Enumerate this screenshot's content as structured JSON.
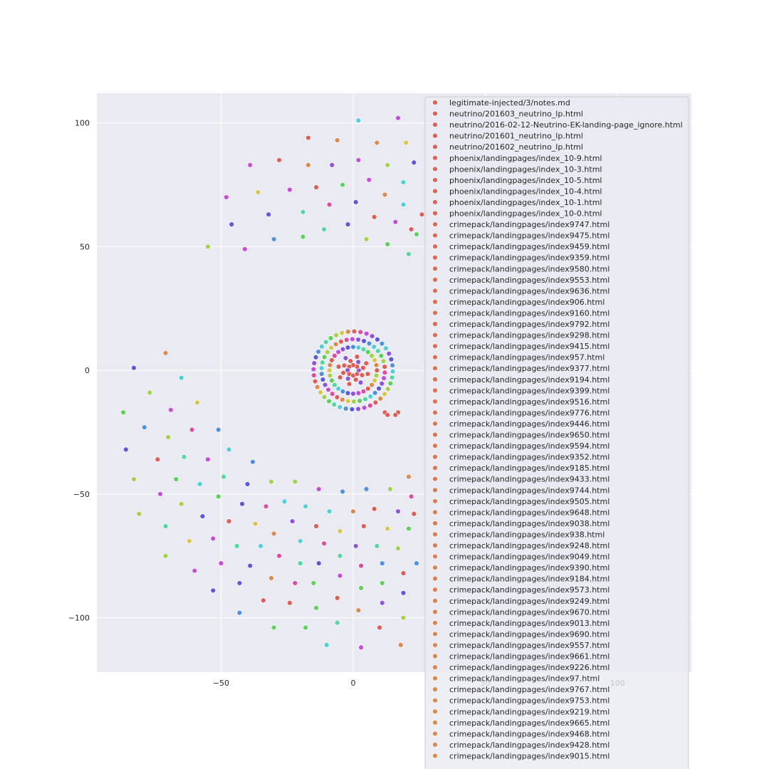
{
  "chart_data": {
    "type": "scatter",
    "title": "",
    "xlabel": "",
    "ylabel": "",
    "xlim": [
      -97,
      128
    ],
    "ylim": [
      -122,
      112
    ],
    "xticks": [
      -50,
      0,
      50,
      100
    ],
    "yticks": [
      -100,
      -50,
      0,
      50,
      100
    ],
    "xtick_labels": [
      "−50",
      "0",
      "50",
      "100"
    ],
    "ytick_labels": [
      "−100",
      "−50",
      "0",
      "50",
      "100"
    ],
    "grid": true,
    "legend_position": "top-right",
    "colors": {
      "background": "#eaeaf2",
      "grid": "#ffffff",
      "marker_edge": "#ffffff",
      "palette": [
        "#db5f57",
        "#d98b4f",
        "#d6c64e",
        "#a4d14e",
        "#5dd15c",
        "#53d6a0",
        "#4fcfd6",
        "#5190dc",
        "#5a5ad8",
        "#8c55d8",
        "#c44fd6",
        "#d94f9e"
      ]
    },
    "series": [
      {
        "name": "legitimate-injected/3/notes.md",
        "color": "#db5f57"
      },
      {
        "name": "neutrino/201603_neutrino_lp.html",
        "color": "#db5f57"
      },
      {
        "name": "neutrino/2016-02-12-Neutrino-EK-landing-page_ignore.html",
        "color": "#db5f57"
      },
      {
        "name": "neutrino/201601_neutrino_lp.html",
        "color": "#db5f57"
      },
      {
        "name": "neutrino/201602_neutrino_lp.html",
        "color": "#db5f57"
      },
      {
        "name": "phoenix/landingpages/index_10-9.html",
        "color": "#db6457"
      },
      {
        "name": "phoenix/landingpages/index_10-3.html",
        "color": "#db6457"
      },
      {
        "name": "phoenix/landingpages/index_10-5.html",
        "color": "#db6457"
      },
      {
        "name": "phoenix/landingpages/index_10-4.html",
        "color": "#db6457"
      },
      {
        "name": "phoenix/landingpages/index_10-1.html",
        "color": "#db6457"
      },
      {
        "name": "phoenix/landingpages/index_10-0.html",
        "color": "#db6457"
      },
      {
        "name": "crimepack/landingpages/index9747.html",
        "color": "#da6956"
      },
      {
        "name": "crimepack/landingpages/index9475.html",
        "color": "#da6956"
      },
      {
        "name": "crimepack/landingpages/index9459.html",
        "color": "#da6956"
      },
      {
        "name": "crimepack/landingpages/index9359.html",
        "color": "#da6956"
      },
      {
        "name": "crimepack/landingpages/index9580.html",
        "color": "#da6956"
      },
      {
        "name": "crimepack/landingpages/index9553.html",
        "color": "#da6956"
      },
      {
        "name": "crimepack/landingpages/index9636.html",
        "color": "#da6e55"
      },
      {
        "name": "crimepack/landingpages/index906.html",
        "color": "#da6e55"
      },
      {
        "name": "crimepack/landingpages/index9160.html",
        "color": "#da6e55"
      },
      {
        "name": "crimepack/landingpages/index9792.html",
        "color": "#da6e55"
      },
      {
        "name": "crimepack/landingpages/index9298.html",
        "color": "#da6e55"
      },
      {
        "name": "crimepack/landingpages/index9415.html",
        "color": "#da6e55"
      },
      {
        "name": "crimepack/landingpages/index957.html",
        "color": "#da7354"
      },
      {
        "name": "crimepack/landingpages/index9377.html",
        "color": "#da7354"
      },
      {
        "name": "crimepack/landingpages/index9194.html",
        "color": "#da7354"
      },
      {
        "name": "crimepack/landingpages/index9399.html",
        "color": "#da7354"
      },
      {
        "name": "crimepack/landingpages/index9516.html",
        "color": "#da7354"
      },
      {
        "name": "crimepack/landingpages/index9776.html",
        "color": "#da7354"
      },
      {
        "name": "crimepack/landingpages/index9446.html",
        "color": "#d97853"
      },
      {
        "name": "crimepack/landingpages/index9650.html",
        "color": "#d97853"
      },
      {
        "name": "crimepack/landingpages/index9594.html",
        "color": "#d97853"
      },
      {
        "name": "crimepack/landingpages/index9352.html",
        "color": "#d97853"
      },
      {
        "name": "crimepack/landingpages/index9185.html",
        "color": "#d97853"
      },
      {
        "name": "crimepack/landingpages/index9433.html",
        "color": "#d97853"
      },
      {
        "name": "crimepack/landingpages/index9744.html",
        "color": "#d97c52"
      },
      {
        "name": "crimepack/landingpages/index9505.html",
        "color": "#d97c52"
      },
      {
        "name": "crimepack/landingpages/index9648.html",
        "color": "#d97c52"
      },
      {
        "name": "crimepack/landingpages/index9038.html",
        "color": "#d97c52"
      },
      {
        "name": "crimepack/landingpages/index938.html",
        "color": "#d97c52"
      },
      {
        "name": "crimepack/landingpages/index9248.html",
        "color": "#d97c52"
      },
      {
        "name": "crimepack/landingpages/index9049.html",
        "color": "#d98151"
      },
      {
        "name": "crimepack/landingpages/index9390.html",
        "color": "#d98151"
      },
      {
        "name": "crimepack/landingpages/index9184.html",
        "color": "#d98151"
      },
      {
        "name": "crimepack/landingpages/index9573.html",
        "color": "#d98151"
      },
      {
        "name": "crimepack/landingpages/index9249.html",
        "color": "#d98151"
      },
      {
        "name": "crimepack/landingpages/index9670.html",
        "color": "#d98151"
      },
      {
        "name": "crimepack/landingpages/index9013.html",
        "color": "#d98650"
      },
      {
        "name": "crimepack/landingpages/index9690.html",
        "color": "#d98650"
      },
      {
        "name": "crimepack/landingpages/index9557.html",
        "color": "#d98650"
      },
      {
        "name": "crimepack/landingpages/index9661.html",
        "color": "#d98650"
      },
      {
        "name": "crimepack/landingpages/index9226.html",
        "color": "#d98650"
      },
      {
        "name": "crimepack/landingpages/index97.html",
        "color": "#d98650"
      },
      {
        "name": "crimepack/landingpages/index9767.html",
        "color": "#d98b4f"
      },
      {
        "name": "crimepack/landingpages/index9753.html",
        "color": "#d98b4f"
      },
      {
        "name": "crimepack/landingpages/index9219.html",
        "color": "#d98b4f"
      },
      {
        "name": "crimepack/landingpages/index9665.html",
        "color": "#d98b4f"
      },
      {
        "name": "crimepack/landingpages/index9468.html",
        "color": "#d98b4f"
      },
      {
        "name": "crimepack/landingpages/index9428.html",
        "color": "#d98b4f"
      },
      {
        "name": "crimepack/landingpages/index9015.html",
        "color": "#d98b4f"
      }
    ],
    "points": [
      {
        "x": 2,
        "y": 101,
        "c": 6
      },
      {
        "x": 17,
        "y": 102,
        "c": 10
      },
      {
        "x": -17,
        "y": 94,
        "c": 0
      },
      {
        "x": -6,
        "y": 93,
        "c": 1
      },
      {
        "x": 9,
        "y": 92,
        "c": 1
      },
      {
        "x": 20,
        "y": 92,
        "c": 2
      },
      {
        "x": -28,
        "y": 85,
        "c": 0
      },
      {
        "x": 2,
        "y": 85,
        "c": 10
      },
      {
        "x": 23,
        "y": 84,
        "c": 8
      },
      {
        "x": -39,
        "y": 83,
        "c": 10
      },
      {
        "x": -17,
        "y": 83,
        "c": 1
      },
      {
        "x": -8,
        "y": 83,
        "c": 9
      },
      {
        "x": 13,
        "y": 83,
        "c": 3
      },
      {
        "x": 6,
        "y": 77,
        "c": 10
      },
      {
        "x": -4,
        "y": 75,
        "c": 4
      },
      {
        "x": 19,
        "y": 76,
        "c": 6
      },
      {
        "x": -24,
        "y": 73,
        "c": 10
      },
      {
        "x": -14,
        "y": 74,
        "c": 0
      },
      {
        "x": -36,
        "y": 72,
        "c": 2
      },
      {
        "x": 12,
        "y": 71,
        "c": 1
      },
      {
        "x": -48,
        "y": 70,
        "c": 10
      },
      {
        "x": 1,
        "y": 68,
        "c": 8
      },
      {
        "x": 19,
        "y": 67,
        "c": 6
      },
      {
        "x": -9,
        "y": 67,
        "c": 11
      },
      {
        "x": -19,
        "y": 64,
        "c": 5
      },
      {
        "x": -32,
        "y": 63,
        "c": 8
      },
      {
        "x": 8,
        "y": 62,
        "c": 0
      },
      {
        "x": 26,
        "y": 63,
        "c": 0
      },
      {
        "x": -46,
        "y": 59,
        "c": 8
      },
      {
        "x": -2,
        "y": 59,
        "c": 8
      },
      {
        "x": 16,
        "y": 60,
        "c": 10
      },
      {
        "x": -11,
        "y": 57,
        "c": 5
      },
      {
        "x": 24,
        "y": 55,
        "c": 4
      },
      {
        "x": -30,
        "y": 53,
        "c": 7
      },
      {
        "x": -19,
        "y": 54,
        "c": 4
      },
      {
        "x": 5,
        "y": 53,
        "c": 3
      },
      {
        "x": 13,
        "y": 51,
        "c": 4
      },
      {
        "x": -55,
        "y": 50,
        "c": 3
      },
      {
        "x": -41,
        "y": 49,
        "c": 10
      },
      {
        "x": 21,
        "y": 47,
        "c": 5
      },
      {
        "x": -71,
        "y": 7,
        "c": 1
      },
      {
        "x": -83,
        "y": 1,
        "c": 8
      },
      {
        "x": -65,
        "y": -3,
        "c": 6
      },
      {
        "x": -77,
        "y": -9,
        "c": 3
      },
      {
        "x": -59,
        "y": -13,
        "c": 2
      },
      {
        "x": -69,
        "y": -16,
        "c": 10
      },
      {
        "x": -87,
        "y": -17,
        "c": 4
      },
      {
        "x": -79,
        "y": -23,
        "c": 7
      },
      {
        "x": -51,
        "y": -24,
        "c": 7
      },
      {
        "x": -61,
        "y": -24,
        "c": 11
      },
      {
        "x": -70,
        "y": -27,
        "c": 3
      },
      {
        "x": -86,
        "y": -32,
        "c": 8
      },
      {
        "x": -47,
        "y": -32,
        "c": 6
      },
      {
        "x": -64,
        "y": -35,
        "c": 5
      },
      {
        "x": -55,
        "y": -36,
        "c": 10
      },
      {
        "x": -74,
        "y": -36,
        "c": 0
      },
      {
        "x": -38,
        "y": -37,
        "c": 7
      },
      {
        "x": -49,
        "y": -43,
        "c": 5
      },
      {
        "x": -67,
        "y": -44,
        "c": 4
      },
      {
        "x": -83,
        "y": -44,
        "c": 3
      },
      {
        "x": -31,
        "y": -45,
        "c": 3
      },
      {
        "x": -22,
        "y": -45,
        "c": 3
      },
      {
        "x": -58,
        "y": -46,
        "c": 6
      },
      {
        "x": -40,
        "y": -46,
        "c": 8
      },
      {
        "x": -13,
        "y": -48,
        "c": 10
      },
      {
        "x": -4,
        "y": -49,
        "c": 7
      },
      {
        "x": 5,
        "y": -48,
        "c": 7
      },
      {
        "x": 14,
        "y": -48,
        "c": 3
      },
      {
        "x": -73,
        "y": -50,
        "c": 10
      },
      {
        "x": -51,
        "y": -51,
        "c": 4
      },
      {
        "x": 22,
        "y": -51,
        "c": 11
      },
      {
        "x": -26,
        "y": -53,
        "c": 6
      },
      {
        "x": -65,
        "y": -54,
        "c": 3
      },
      {
        "x": -42,
        "y": -54,
        "c": 8
      },
      {
        "x": -18,
        "y": -55,
        "c": 6
      },
      {
        "x": -33,
        "y": -55,
        "c": 11
      },
      {
        "x": 8,
        "y": -56,
        "c": 0
      },
      {
        "x": -9,
        "y": -57,
        "c": 6
      },
      {
        "x": 0,
        "y": -57,
        "c": 1
      },
      {
        "x": 17,
        "y": -57,
        "c": 9
      },
      {
        "x": -81,
        "y": -58,
        "c": 3
      },
      {
        "x": -57,
        "y": -59,
        "c": 8
      },
      {
        "x": -47,
        "y": -61,
        "c": 0
      },
      {
        "x": -37,
        "y": -62,
        "c": 2
      },
      {
        "x": -23,
        "y": -61,
        "c": 9
      },
      {
        "x": -14,
        "y": -63,
        "c": 0
      },
      {
        "x": 4,
        "y": -63,
        "c": 0
      },
      {
        "x": -71,
        "y": -63,
        "c": 5
      },
      {
        "x": 13,
        "y": -64,
        "c": 2
      },
      {
        "x": 21,
        "y": -64,
        "c": 4
      },
      {
        "x": -5,
        "y": -65,
        "c": 2
      },
      {
        "x": -30,
        "y": -66,
        "c": 1
      },
      {
        "x": -62,
        "y": -69,
        "c": 2
      },
      {
        "x": -53,
        "y": -68,
        "c": 10
      },
      {
        "x": -20,
        "y": -69,
        "c": 6
      },
      {
        "x": -11,
        "y": -70,
        "c": 11
      },
      {
        "x": -44,
        "y": -71,
        "c": 5
      },
      {
        "x": -35,
        "y": -71,
        "c": 6
      },
      {
        "x": 1,
        "y": -71,
        "c": 9
      },
      {
        "x": 9,
        "y": -71,
        "c": 5
      },
      {
        "x": 17,
        "y": -72,
        "c": 3
      },
      {
        "x": -71,
        "y": -75,
        "c": 3
      },
      {
        "x": -5,
        "y": -75,
        "c": 5
      },
      {
        "x": -28,
        "y": -75,
        "c": 11
      },
      {
        "x": -50,
        "y": -78,
        "c": 10
      },
      {
        "x": -39,
        "y": -79,
        "c": 8
      },
      {
        "x": -20,
        "y": -78,
        "c": 5
      },
      {
        "x": -13,
        "y": -78,
        "c": 8
      },
      {
        "x": 3,
        "y": -79,
        "c": 11
      },
      {
        "x": 11,
        "y": -78,
        "c": 7
      },
      {
        "x": 24,
        "y": -78,
        "c": 7
      },
      {
        "x": -60,
        "y": -81,
        "c": 10
      },
      {
        "x": 19,
        "y": -82,
        "c": 0
      },
      {
        "x": -5,
        "y": -83,
        "c": 10
      },
      {
        "x": -31,
        "y": -84,
        "c": 1
      },
      {
        "x": -15,
        "y": -86,
        "c": 4
      },
      {
        "x": -43,
        "y": -86,
        "c": 8
      },
      {
        "x": -22,
        "y": -86,
        "c": 11
      },
      {
        "x": 11,
        "y": -86,
        "c": 4
      },
      {
        "x": 3,
        "y": -88,
        "c": 4
      },
      {
        "x": -53,
        "y": -89,
        "c": 8
      },
      {
        "x": 19,
        "y": -90,
        "c": 8
      },
      {
        "x": -6,
        "y": -92,
        "c": 0
      },
      {
        "x": -34,
        "y": -93,
        "c": 0
      },
      {
        "x": 11,
        "y": -94,
        "c": 9
      },
      {
        "x": -24,
        "y": -94,
        "c": 0
      },
      {
        "x": -14,
        "y": -96,
        "c": 4
      },
      {
        "x": 2,
        "y": -97,
        "c": 1
      },
      {
        "x": -43,
        "y": -98,
        "c": 7
      },
      {
        "x": 19,
        "y": -100,
        "c": 3
      },
      {
        "x": -6,
        "y": -102,
        "c": 5
      },
      {
        "x": -30,
        "y": -104,
        "c": 4
      },
      {
        "x": -18,
        "y": -104,
        "c": 4
      },
      {
        "x": 10,
        "y": -104,
        "c": 0
      },
      {
        "x": 18,
        "y": -111,
        "c": 1
      },
      {
        "x": -10,
        "y": -111,
        "c": 6
      },
      {
        "x": 3,
        "y": -112,
        "c": 10
      },
      {
        "x": 12,
        "y": -17,
        "c": 0
      },
      {
        "x": 13,
        "y": -18,
        "c": 0
      },
      {
        "x": 17,
        "y": -17,
        "c": 0
      },
      {
        "x": 16,
        "y": -18,
        "c": 0
      },
      {
        "x": 21,
        "y": -43,
        "c": 1
      },
      {
        "x": 23,
        "y": -58,
        "c": 0
      },
      {
        "x": 22,
        "y": 57,
        "c": 0
      }
    ],
    "cluster": {
      "center": [
        0,
        0
      ],
      "inner_ring_radius": 6,
      "rings": [
        {
          "radius": 9,
          "count": 28
        },
        {
          "radius": 12,
          "count": 34
        },
        {
          "radius": 15,
          "count": 40
        }
      ]
    }
  }
}
